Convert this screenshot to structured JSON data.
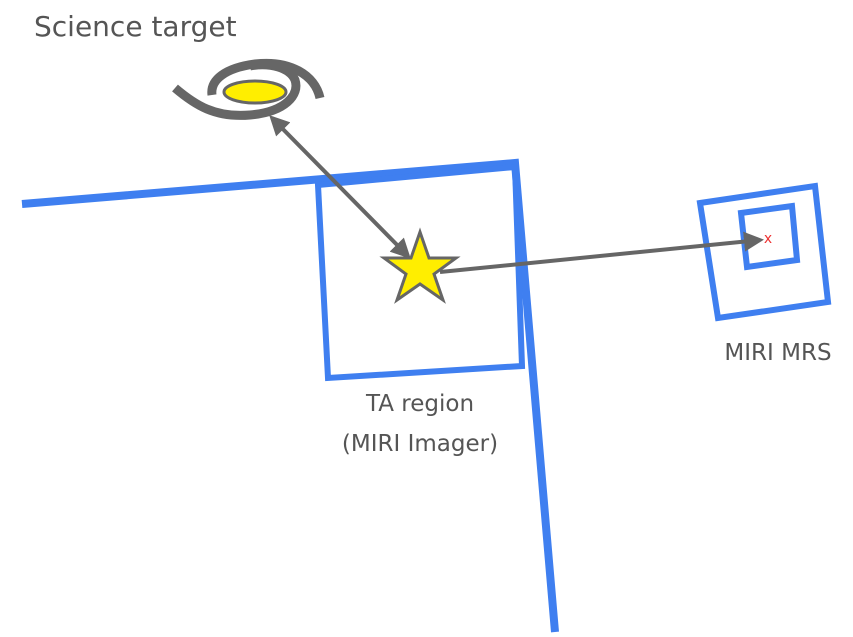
{
  "labels": {
    "science_target": "Science target",
    "ta_region": "TA region",
    "ta_instrument": "(MIRI Imager)",
    "mrs": "MIRI MRS",
    "mrs_marker": "x"
  }
}
